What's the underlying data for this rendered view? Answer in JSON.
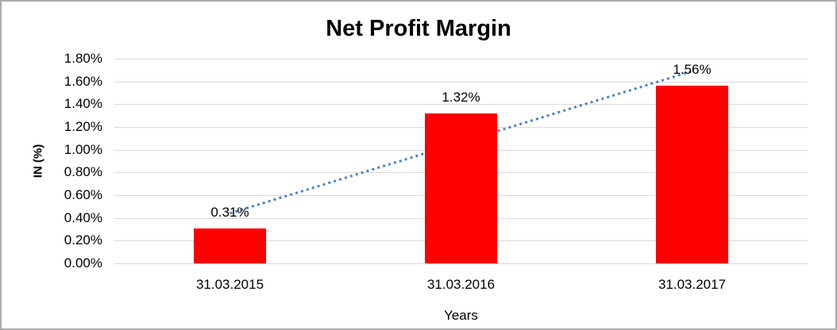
{
  "chart_data": {
    "type": "bar",
    "title": "Net Profit Margin",
    "xlabel": "Years",
    "ylabel": "IN (%)",
    "categories": [
      "31.03.2015",
      "31.03.2016",
      "31.03.2017"
    ],
    "values": [
      0.31,
      1.32,
      1.56
    ],
    "data_labels": [
      "0.31%",
      "1.32%",
      "1.56%"
    ],
    "ylim": [
      0,
      1.8
    ],
    "ytick_step": 0.2,
    "ytick_labels": [
      "0.00%",
      "0.20%",
      "0.40%",
      "0.60%",
      "0.80%",
      "1.00%",
      "1.20%",
      "1.40%",
      "1.60%",
      "1.80%"
    ],
    "grid": true,
    "legend": "none",
    "bar_color": "#FF0000",
    "gridline_color": "#D9D9D9",
    "text_color": "#000000",
    "border_color": "#ABABAB",
    "trendline": {
      "type": "linear",
      "style": "dotted",
      "color": "#4E81BD",
      "fit_values": [
        0.44,
        1.06,
        1.69
      ]
    }
  }
}
